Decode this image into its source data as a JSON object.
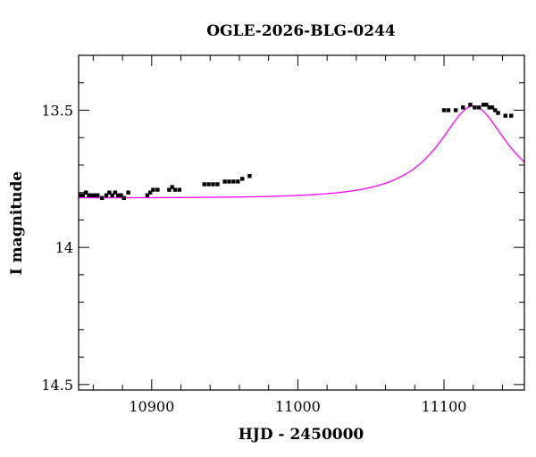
{
  "chart_data": {
    "type": "scatter",
    "title": "OGLE-2026-BLG-0244",
    "xlabel": "HJD - 2450000",
    "ylabel": "I magnitude",
    "xlim": [
      10850,
      11155
    ],
    "ylim": [
      14.52,
      13.3
    ],
    "y_inverted": true,
    "x_ticks": [
      10900,
      11000,
      11100
    ],
    "x_tick_labels": [
      "10900",
      "11000",
      "11100"
    ],
    "y_ticks": [
      13.5,
      14,
      14.5
    ],
    "y_tick_labels": [
      "13.5",
      "14",
      "14.5"
    ],
    "grid": false,
    "colors": {
      "points": "#000000",
      "model": "#ff00ff",
      "frame": "#000000"
    },
    "model": {
      "type": "pspl",
      "baseline": 13.82,
      "t0": 11120,
      "tE": 50,
      "u0": 0.5
    },
    "series": [
      {
        "x": [
          10851,
          10853,
          10855,
          10857,
          10859,
          10861,
          10863,
          10866,
          10869,
          10871,
          10873,
          10875,
          10877,
          10879,
          10881,
          10884,
          10897,
          10899,
          10901,
          10904,
          10912,
          10914,
          10916,
          10919,
          10936,
          10939,
          10942,
          10945,
          10950,
          10953,
          10956,
          10959,
          10962,
          10967,
          11100,
          11103,
          11108,
          11113,
          11118,
          11121,
          11124,
          11127,
          11129,
          11131,
          11133,
          11135,
          11137,
          11142,
          11146
        ],
        "y": [
          13.81,
          13.81,
          13.8,
          13.81,
          13.81,
          13.81,
          13.81,
          13.82,
          13.81,
          13.8,
          13.81,
          13.8,
          13.81,
          13.81,
          13.82,
          13.8,
          13.81,
          13.8,
          13.79,
          13.79,
          13.79,
          13.78,
          13.79,
          13.79,
          13.77,
          13.77,
          13.77,
          13.77,
          13.76,
          13.76,
          13.76,
          13.76,
          13.75,
          13.74,
          13.5,
          13.5,
          13.5,
          13.49,
          13.48,
          13.49,
          13.49,
          13.48,
          13.48,
          13.49,
          13.49,
          13.5,
          13.51,
          13.52,
          13.52
        ],
        "yerr": [
          0.006,
          0.006,
          0.006,
          0.006,
          0.006,
          0.006,
          0.006,
          0.006,
          0.006,
          0.006,
          0.006,
          0.006,
          0.006,
          0.006,
          0.006,
          0.006,
          0.006,
          0.006,
          0.006,
          0.006,
          0.006,
          0.006,
          0.006,
          0.006,
          0.006,
          0.006,
          0.006,
          0.006,
          0.006,
          0.006,
          0.006,
          0.006,
          0.006,
          0.006,
          0.006,
          0.006,
          0.006,
          0.006,
          0.006,
          0.006,
          0.006,
          0.006,
          0.006,
          0.006,
          0.006,
          0.006,
          0.006,
          0.006,
          0.006
        ]
      }
    ]
  }
}
